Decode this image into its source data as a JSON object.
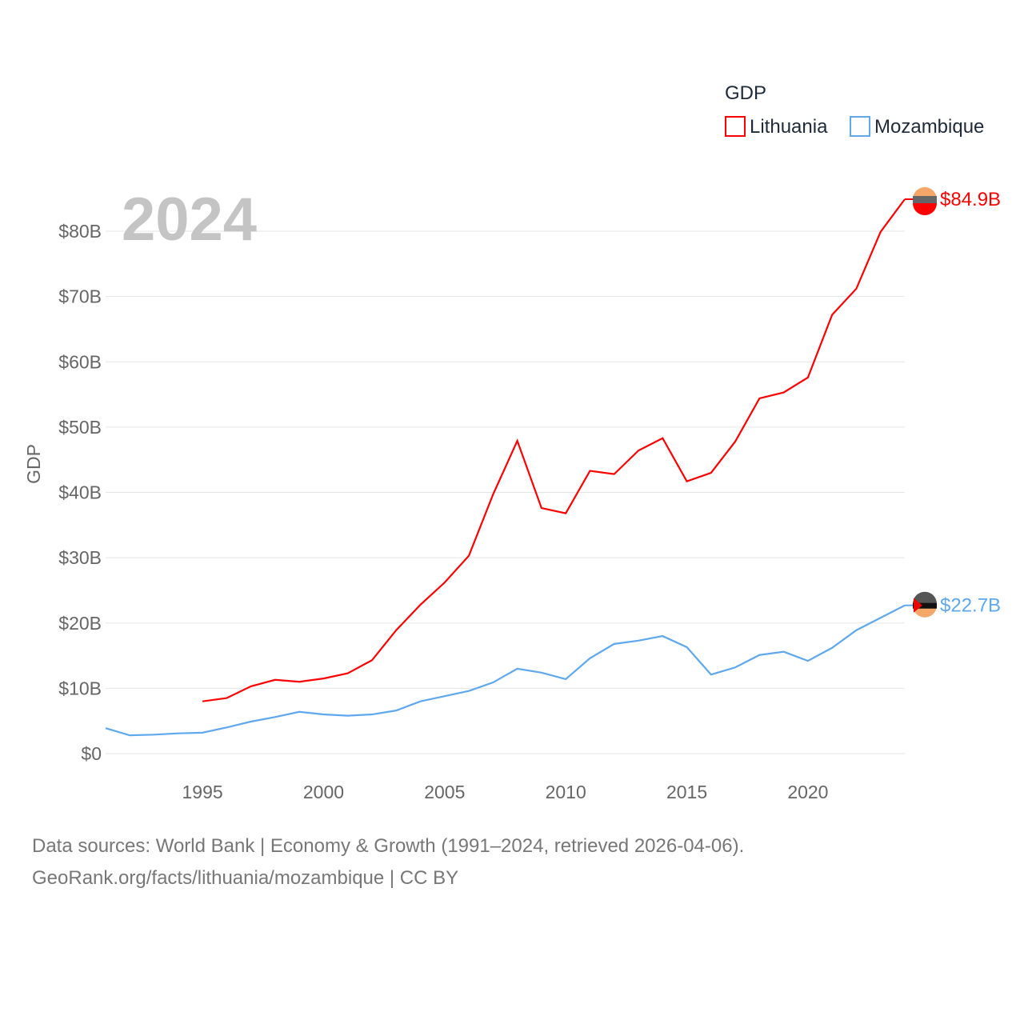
{
  "chart_data": {
    "type": "line",
    "title": "",
    "year_label": "2024",
    "xlabel": "",
    "ylabel": "GDP",
    "xlim": [
      1991,
      2024
    ],
    "ylim": [
      0,
      80
    ],
    "grid": true,
    "legend": {
      "title": "GDP",
      "placement": "top-right"
    },
    "y_ticks": [
      {
        "value": 0,
        "label": "$0"
      },
      {
        "value": 10,
        "label": "$10B"
      },
      {
        "value": 20,
        "label": "$20B"
      },
      {
        "value": 30,
        "label": "$30B"
      },
      {
        "value": 40,
        "label": "$40B"
      },
      {
        "value": 50,
        "label": "$50B"
      },
      {
        "value": 60,
        "label": "$60B"
      },
      {
        "value": 70,
        "label": "$70B"
      },
      {
        "value": 80,
        "label": "$80B"
      }
    ],
    "x_ticks": [
      {
        "value": 1995,
        "label": "1995"
      },
      {
        "value": 2000,
        "label": "2000"
      },
      {
        "value": 2005,
        "label": "2005"
      },
      {
        "value": 2010,
        "label": "2010"
      },
      {
        "value": 2015,
        "label": "2015"
      },
      {
        "value": 2020,
        "label": "2020"
      }
    ],
    "series": [
      {
        "name": "Lithuania",
        "color": "#ff0000",
        "end_label": "$84.9B",
        "x": [
          1995,
          1996,
          1997,
          1998,
          1999,
          2000,
          2001,
          2002,
          2003,
          2004,
          2005,
          2006,
          2007,
          2008,
          2009,
          2010,
          2011,
          2012,
          2013,
          2014,
          2015,
          2016,
          2017,
          2018,
          2019,
          2020,
          2021,
          2022,
          2023,
          2024
        ],
        "values": [
          8.0,
          8.5,
          10.3,
          11.3,
          11.0,
          11.5,
          12.3,
          14.3,
          18.9,
          22.8,
          26.2,
          30.3,
          39.7,
          47.9,
          37.6,
          36.8,
          43.3,
          42.8,
          46.4,
          48.3,
          41.7,
          43.0,
          47.8,
          54.4,
          55.3,
          57.6,
          67.2,
          71.2,
          79.9,
          84.9
        ]
      },
      {
        "name": "Mozambique",
        "color": "#5ea8ee",
        "end_label": "$22.7B",
        "x": [
          1991,
          1992,
          1993,
          1994,
          1995,
          1996,
          1997,
          1998,
          1999,
          2000,
          2001,
          2002,
          2003,
          2004,
          2005,
          2006,
          2007,
          2008,
          2009,
          2010,
          2011,
          2012,
          2013,
          2014,
          2015,
          2016,
          2017,
          2018,
          2019,
          2020,
          2021,
          2022,
          2023,
          2024
        ],
        "values": [
          3.9,
          2.8,
          2.9,
          3.1,
          3.2,
          4.0,
          4.9,
          5.6,
          6.4,
          6.0,
          5.8,
          6.0,
          6.6,
          8.0,
          8.8,
          9.6,
          10.9,
          13.0,
          12.4,
          11.4,
          14.6,
          16.8,
          17.3,
          18.0,
          16.3,
          12.1,
          13.2,
          15.1,
          15.6,
          14.2,
          16.2,
          18.9,
          20.8,
          22.7
        ]
      }
    ]
  },
  "footer": {
    "line1": "Data sources: World Bank | Economy & Growth (1991–2024, retrieved 2026-04-06).",
    "line2": "GeoRank.org/facts/lithuania/mozambique | CC BY"
  }
}
